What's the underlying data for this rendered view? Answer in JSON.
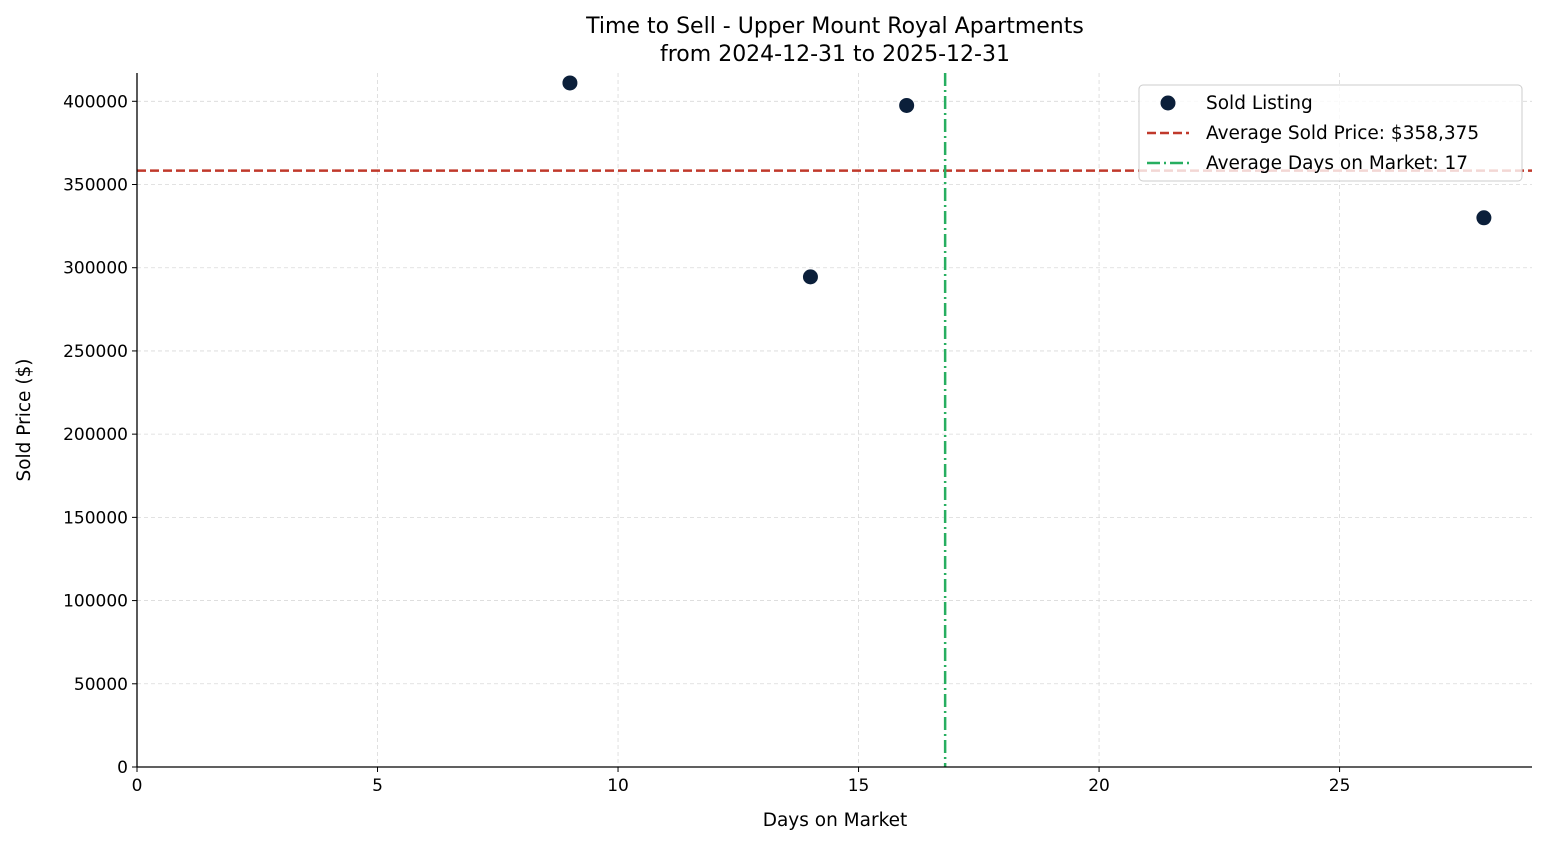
{
  "chart_data": {
    "type": "scatter",
    "title": "Time to Sell - Upper Mount Royal Apartments",
    "subtitle": "from 2024-12-31 to 2025-12-31",
    "xlabel": "Days on Market",
    "ylabel": "Sold Price ($)",
    "xlim": [
      0,
      29
    ],
    "ylim": [
      0,
      417000
    ],
    "x_ticks": [
      0,
      5,
      10,
      15,
      20,
      25
    ],
    "y_ticks": [
      0,
      50000,
      100000,
      150000,
      200000,
      250000,
      300000,
      350000,
      400000
    ],
    "grid": true,
    "legend_position": "top-right",
    "series": [
      {
        "name": "Sold Listing",
        "color": "#0b1f3a",
        "points": [
          {
            "x": 9,
            "y": 411000
          },
          {
            "x": 14,
            "y": 294500
          },
          {
            "x": 16,
            "y": 397500
          },
          {
            "x": 28,
            "y": 330000
          }
        ]
      }
    ],
    "reference_lines": [
      {
        "orientation": "horizontal",
        "value": 358375,
        "style": "dashed",
        "color": "#c0392b",
        "label": "Average Sold Price: $358,375"
      },
      {
        "orientation": "vertical",
        "value": 16.8,
        "style": "dashdot",
        "color": "#27ae60",
        "label": "Average Days on Market: 17"
      }
    ]
  }
}
